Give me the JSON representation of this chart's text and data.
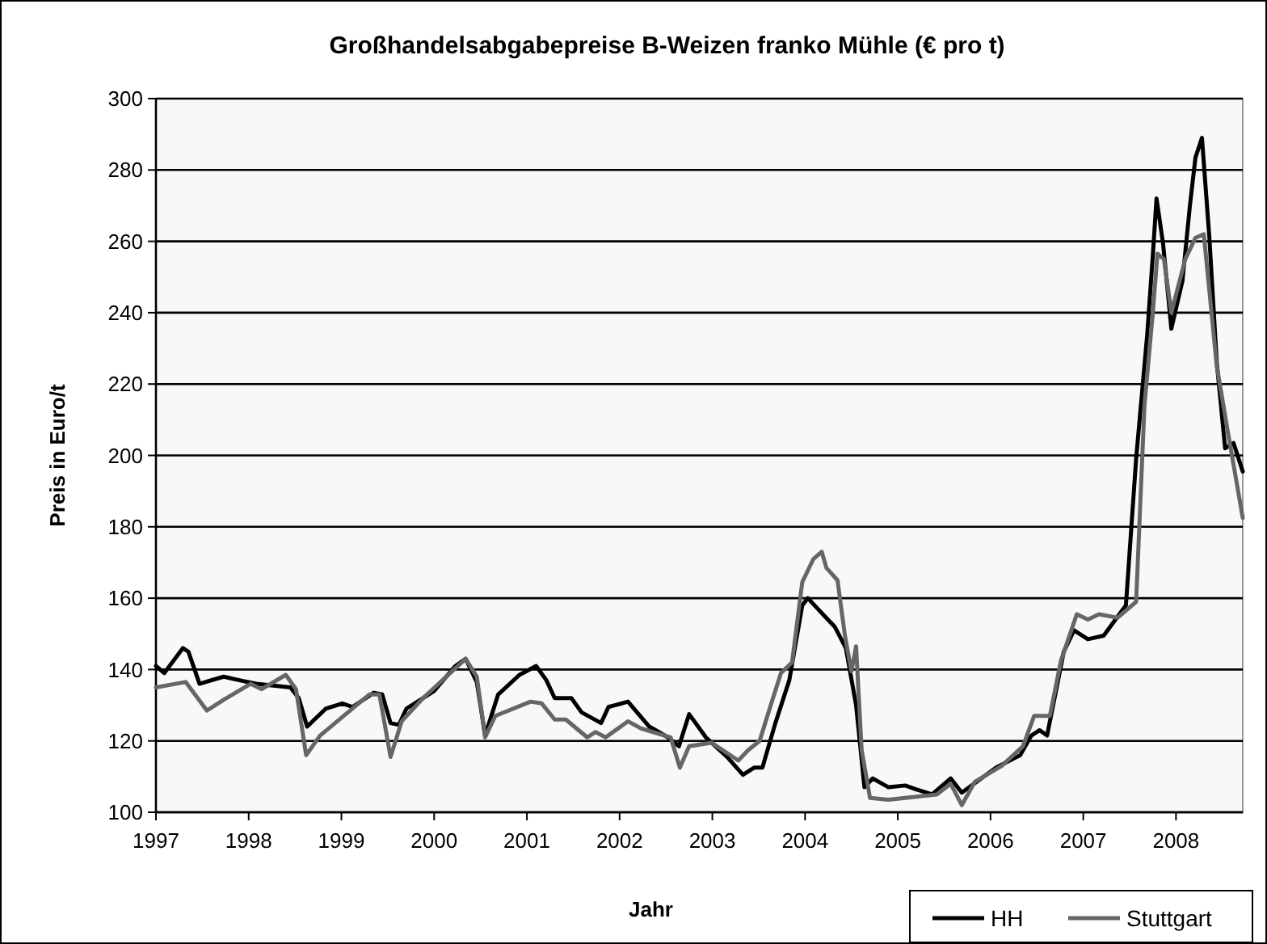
{
  "chart_data": {
    "type": "line",
    "title": "Großhandelsabgabepreise B-Weizen franko Mühle (€ pro t)",
    "xlabel": "Jahr",
    "ylabel": "Preis in Euro/t",
    "xlim": [
      1997,
      2008.72
    ],
    "xticks": [
      1997,
      1998,
      1999,
      2000,
      2001,
      2002,
      2003,
      2004,
      2005,
      2006,
      2007,
      2008
    ],
    "ylim": [
      100,
      300
    ],
    "yticks": [
      100,
      120,
      140,
      160,
      180,
      200,
      220,
      240,
      260,
      280,
      300
    ],
    "grid": "y",
    "legend": "bottom right",
    "marker": "none",
    "line_style": "solid",
    "series": [
      {
        "name": "HH",
        "color": "#000000",
        "x": [
          1997.0,
          1997.09,
          1997.29,
          1997.35,
          1997.47,
          1997.73,
          1997.9,
          1998.08,
          1998.45,
          1998.54,
          1998.63,
          1998.83,
          1999.01,
          1999.12,
          1999.35,
          1999.44,
          1999.53,
          1999.62,
          1999.7,
          2000.0,
          2000.23,
          2000.34,
          2000.46,
          2000.55,
          2000.69,
          2000.92,
          2001.1,
          2001.21,
          2001.3,
          2001.48,
          2001.59,
          2001.8,
          2001.88,
          2002.09,
          2002.32,
          2002.52,
          2002.64,
          2002.75,
          2002.93,
          2003.16,
          2003.33,
          2003.45,
          2003.54,
          2003.68,
          2003.83,
          2003.97,
          2004.03,
          2004.21,
          2004.32,
          2004.44,
          2004.55,
          2004.64,
          2004.73,
          2004.9,
          2005.08,
          2005.19,
          2005.37,
          2005.57,
          2005.69,
          2006.06,
          2006.32,
          2006.44,
          2006.53,
          2006.61,
          2006.79,
          2006.9,
          2007.05,
          2007.22,
          2007.46,
          2007.57,
          2007.69,
          2007.75,
          2007.79,
          2007.86,
          2007.95,
          2008.07,
          2008.15,
          2008.21,
          2008.28,
          2008.36,
          2008.44,
          2008.53,
          2008.62,
          2008.72
        ],
        "values": [
          141,
          139,
          146,
          145,
          136,
          138,
          137,
          136,
          135,
          132,
          124,
          129,
          130.5,
          129.5,
          133.5,
          133,
          125,
          124.5,
          129,
          134,
          141,
          143,
          136.5,
          121.5,
          133,
          138.5,
          141,
          137,
          132,
          132,
          128,
          125,
          129.5,
          131,
          124,
          121,
          118.5,
          127.5,
          121,
          115.5,
          110.5,
          112.5,
          112.5,
          125,
          137,
          158,
          160,
          155,
          152,
          146,
          130,
          107,
          109.5,
          107,
          107.5,
          106.5,
          105,
          109.5,
          105.5,
          112.5,
          116,
          121.5,
          123,
          121.5,
          145,
          151,
          148.5,
          149.5,
          158,
          199,
          234,
          256,
          272,
          259.5,
          235.5,
          249,
          270,
          283.5,
          289,
          261,
          226,
          202,
          203.5,
          195.5
        ]
      },
      {
        "name": "Stuttgart",
        "color": "#666666",
        "x": [
          1997.0,
          1997.32,
          1997.55,
          1997.73,
          1998.02,
          1998.14,
          1998.4,
          1998.51,
          1998.62,
          1998.77,
          1999.3,
          1999.41,
          1999.53,
          1999.65,
          1999.88,
          2000.34,
          2000.46,
          2000.55,
          2000.66,
          2001.04,
          2001.16,
          2001.3,
          2001.42,
          2001.65,
          2001.74,
          2001.85,
          2002.09,
          2002.23,
          2002.55,
          2002.65,
          2002.75,
          2002.99,
          2003.28,
          2003.39,
          2003.51,
          2003.63,
          2003.74,
          2003.86,
          2003.97,
          2004.09,
          2004.18,
          2004.23,
          2004.35,
          2004.43,
          2004.5,
          2004.55,
          2004.61,
          2004.7,
          2004.9,
          2005.08,
          2005.42,
          2005.57,
          2005.69,
          2005.83,
          2006.12,
          2006.35,
          2006.47,
          2006.64,
          2006.76,
          2006.93,
          2007.05,
          2007.17,
          2007.37,
          2007.57,
          2007.66,
          2007.75,
          2007.8,
          2007.87,
          2007.95,
          2008.1,
          2008.21,
          2008.3,
          2008.44,
          2008.56,
          2008.72
        ],
        "values": [
          135,
          136.5,
          128.5,
          131.5,
          136,
          134.5,
          138.5,
          134.5,
          116,
          121.5,
          133,
          133,
          115.5,
          125.5,
          132,
          143,
          138,
          121,
          127,
          131,
          130.5,
          126,
          126,
          121,
          122.5,
          121,
          125.5,
          123.5,
          121,
          112.5,
          118.5,
          119.5,
          114.5,
          117.5,
          120,
          130,
          139,
          142,
          164.5,
          171,
          173,
          168.5,
          165,
          149.5,
          139.5,
          146.5,
          117.5,
          104,
          103.5,
          104,
          105,
          108,
          102,
          108.5,
          113,
          118.5,
          127,
          127,
          142.5,
          155.5,
          154,
          155.5,
          154.5,
          159,
          214,
          240,
          256.5,
          255,
          240,
          255,
          261,
          262,
          225,
          206.5,
          182.5
        ]
      }
    ]
  }
}
